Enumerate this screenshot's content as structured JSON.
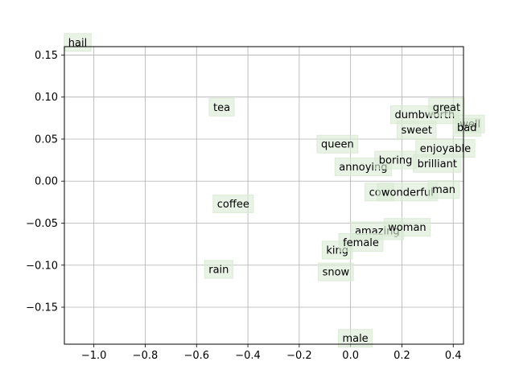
{
  "chart_data": {
    "type": "scatter",
    "title": "",
    "xlabel": "",
    "ylabel": "",
    "xlim": [
      -1.115,
      0.44
    ],
    "ylim": [
      -0.194,
      0.16
    ],
    "grid": true,
    "label_box_color": "#d9ead3",
    "grid_color": "#b0b0b0",
    "x_ticks": [
      {
        "value": -1.0,
        "label": "−1.0"
      },
      {
        "value": -0.8,
        "label": "−0.8"
      },
      {
        "value": -0.6,
        "label": "−0.6"
      },
      {
        "value": -0.4,
        "label": "−0.4"
      },
      {
        "value": -0.2,
        "label": "−0.2"
      },
      {
        "value": 0.0,
        "label": "0.0"
      },
      {
        "value": 0.2,
        "label": "0.2"
      },
      {
        "value": 0.4,
        "label": "0.4"
      }
    ],
    "y_ticks": [
      {
        "value": 0.15,
        "label": "0.15"
      },
      {
        "value": 0.1,
        "label": "0.10"
      },
      {
        "value": 0.05,
        "label": "0.05"
      },
      {
        "value": 0.0,
        "label": "0.00"
      },
      {
        "value": -0.05,
        "label": "−0.05"
      },
      {
        "value": -0.1,
        "label": "−0.10"
      },
      {
        "value": -0.15,
        "label": "−0.15"
      }
    ],
    "points": [
      {
        "label": "hail",
        "x": -1.1,
        "y": 0.165
      },
      {
        "label": "tea",
        "x": -0.535,
        "y": 0.088
      },
      {
        "label": "coffee",
        "x": -0.52,
        "y": -0.027
      },
      {
        "label": "rain",
        "x": -0.553,
        "y": -0.105
      },
      {
        "label": "queen",
        "x": -0.115,
        "y": 0.044
      },
      {
        "label": "annoying",
        "x": -0.045,
        "y": 0.017
      },
      {
        "label": "king",
        "x": -0.095,
        "y": -0.082
      },
      {
        "label": "snow",
        "x": -0.11,
        "y": -0.108
      },
      {
        "label": "male",
        "x": -0.032,
        "y": -0.187
      },
      {
        "label": "amazing",
        "x": 0.017,
        "y": -0.059
      },
      {
        "label": "female",
        "x": -0.03,
        "y": -0.073
      },
      {
        "label": "cow",
        "x": 0.072,
        "y": -0.013
      },
      {
        "label": "boring",
        "x": 0.11,
        "y": 0.025
      },
      {
        "label": "woman",
        "x": 0.146,
        "y": -0.055
      },
      {
        "label": "wonderful",
        "x": 0.12,
        "y": -0.013
      },
      {
        "label": "dumbworth",
        "x": 0.172,
        "y": 0.079
      },
      {
        "label": "sweet",
        "x": 0.197,
        "y": 0.061
      },
      {
        "label": "brilliant",
        "x": 0.26,
        "y": 0.021
      },
      {
        "label": "enjoyable",
        "x": 0.27,
        "y": 0.039
      },
      {
        "label": "great",
        "x": 0.32,
        "y": 0.088
      },
      {
        "label": "man",
        "x": 0.318,
        "y": -0.01
      },
      {
        "label": "well",
        "x": 0.425,
        "y": 0.068
      },
      {
        "label": "bad",
        "x": 0.415,
        "y": 0.064
      }
    ]
  }
}
